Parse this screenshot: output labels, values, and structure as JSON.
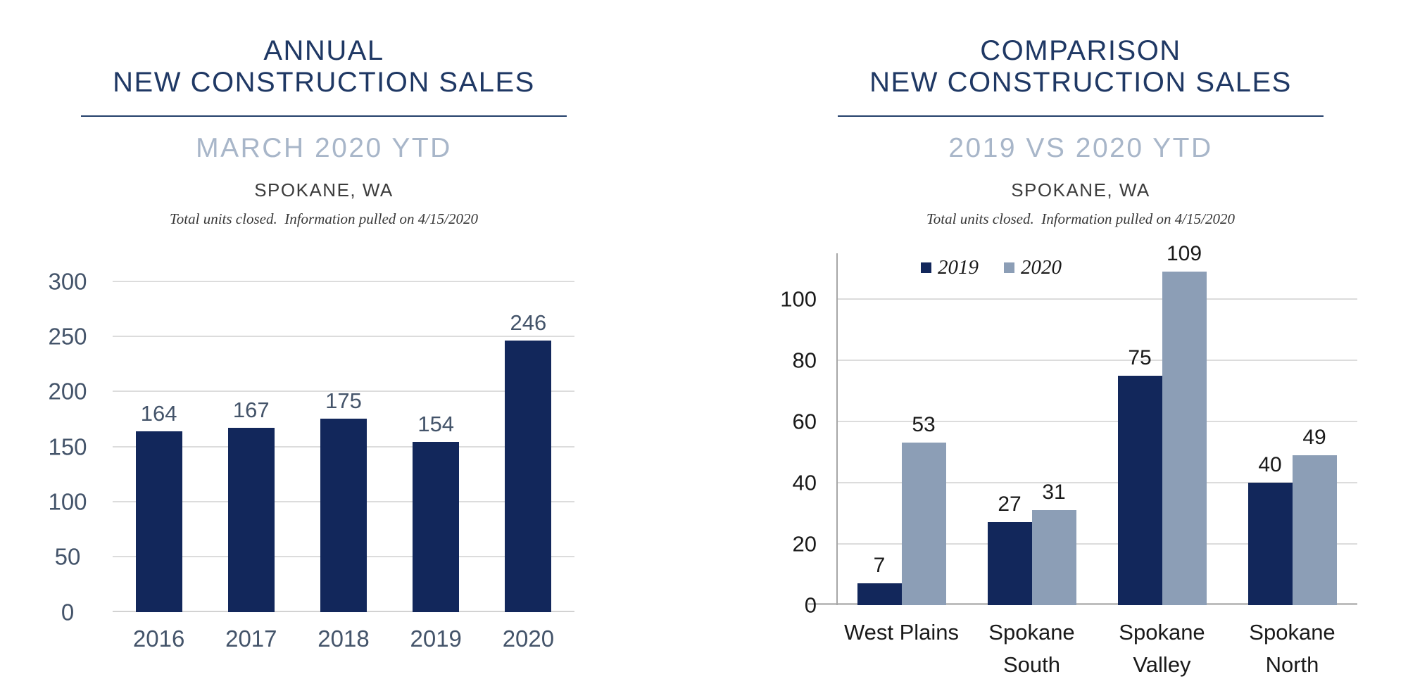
{
  "page": {
    "background": "#FFFFFF"
  },
  "charts": [
    {
      "header": {
        "title_line1": "ANNUAL",
        "title_line2": "NEW CONSTRUCTION SALES",
        "subtitle": "MARCH 2020 YTD",
        "location": "SPOKANE, WA",
        "note": "Total units closed.  Information pulled on 4/15/2020"
      }
    },
    {
      "header": {
        "title_line1": "COMPARISON",
        "title_line2": "NEW CONSTRUCTION SALES",
        "subtitle": "2019 VS 2020 YTD",
        "location": "SPOKANE, WA",
        "note": "Total units closed.  Information pulled on 4/15/2020"
      }
    }
  ],
  "chart_data": [
    {
      "type": "bar",
      "title": "ANNUAL NEW CONSTRUCTION SALES",
      "subtitle": "MARCH 2020 YTD",
      "location": "SPOKANE, WA",
      "note": "Total units closed.  Information pulled on 4/15/2020",
      "categories": [
        "2016",
        "2017",
        "2018",
        "2019",
        "2020"
      ],
      "series": [
        {
          "name": "",
          "color": "#12275B",
          "values": [
            164,
            167,
            175,
            154,
            246
          ]
        }
      ],
      "xlabel": "",
      "ylabel": "",
      "ylim": [
        0,
        300
      ],
      "yticks": [
        0,
        50,
        100,
        150,
        200,
        250,
        300
      ],
      "grid": true,
      "legend": false,
      "data_labels": true,
      "style": {
        "grid_color": "#DCDCDC",
        "baseline_color": "#D2D2D2",
        "axis_line_color": null,
        "tick_label_color": "#44546A",
        "xlabel_color": "#44546A",
        "value_label_color": "#44546A"
      }
    },
    {
      "type": "bar",
      "title": "COMPARISON NEW CONSTRUCTION SALES",
      "subtitle": "2019 VS 2020 YTD",
      "location": "SPOKANE, WA",
      "note": "Total units closed.  Information pulled on 4/15/2020",
      "categories": [
        "West Plains",
        "Spokane South",
        "Spokane Valley",
        "Spokane North"
      ],
      "series": [
        {
          "name": "2019",
          "color": "#12275B",
          "values": [
            7,
            27,
            75,
            40
          ]
        },
        {
          "name": "2020",
          "color": "#8C9EB6",
          "values": [
            53,
            31,
            109,
            49
          ]
        }
      ],
      "xlabel": "",
      "ylabel": "",
      "ylim": [
        0,
        115
      ],
      "yticks": [
        0,
        20,
        40,
        60,
        80,
        100
      ],
      "grid": true,
      "legend": true,
      "legend_position": "top",
      "data_labels": true,
      "style": {
        "grid_color": "#DCDCDC",
        "baseline_color": "#BEBEBE",
        "axis_line_color": "#A6A6A6",
        "tick_label_color": "#1A1A1A",
        "xlabel_color": "#1A1A1A",
        "value_label_color": "#1A1A1A"
      }
    }
  ]
}
